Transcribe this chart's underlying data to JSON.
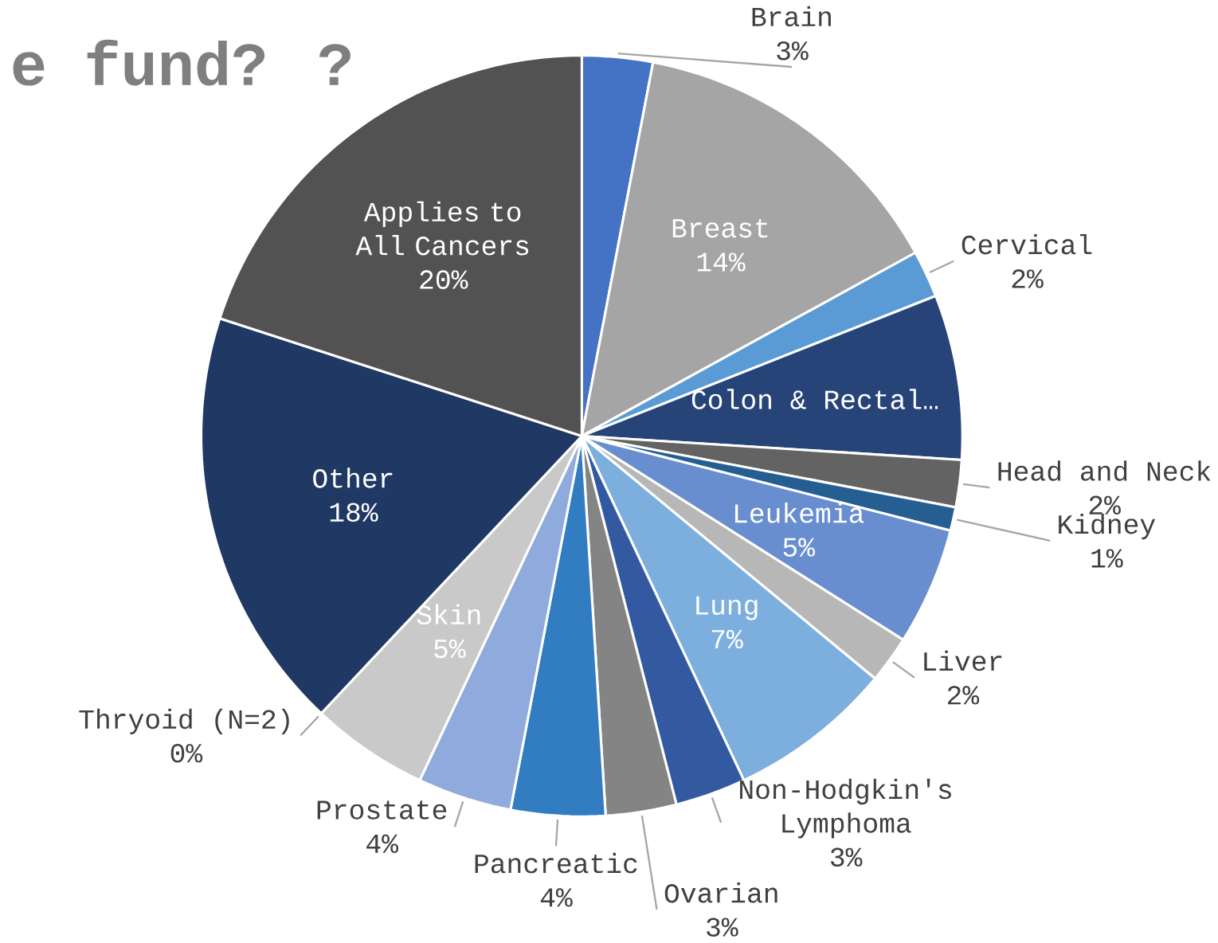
{
  "chart_data": {
    "type": "pie",
    "title": "e fund? ?",
    "categories": [
      "Brain",
      "Breast",
      "Cervical",
      "Colon & Rectal…",
      "Head and Neck",
      "Kidney",
      "Leukemia",
      "Liver",
      "Lung",
      "Non-Hodgkin's Lymphoma",
      "Ovarian",
      "Pancreatic",
      "Prostate",
      "Skin",
      "Thryoid (N=2)",
      "Other",
      "Applies to All Cancers"
    ],
    "values": [
      3,
      14,
      2,
      7,
      2,
      1,
      5,
      2,
      7,
      3,
      3,
      4,
      4,
      5,
      0,
      18,
      20
    ],
    "value_labels": [
      "3%",
      "14%",
      "2%",
      null,
      "2%",
      "1%",
      "5%",
      "2%",
      "7%",
      "3%",
      "3%",
      "4%",
      "4%",
      "5%",
      "0%",
      "18%",
      "20%"
    ],
    "colors": [
      "#4472c4",
      "#a5a5a5",
      "#5b9bd5",
      "#264478",
      "#636363",
      "#255e91",
      "#698ed0",
      "#b7b7b7",
      "#7cafdd",
      "#335aa1",
      "#848484",
      "#327dc2",
      "#8faadc",
      "#c9c9c9",
      "#2c4d7a",
      "#203864",
      "#525252"
    ]
  }
}
